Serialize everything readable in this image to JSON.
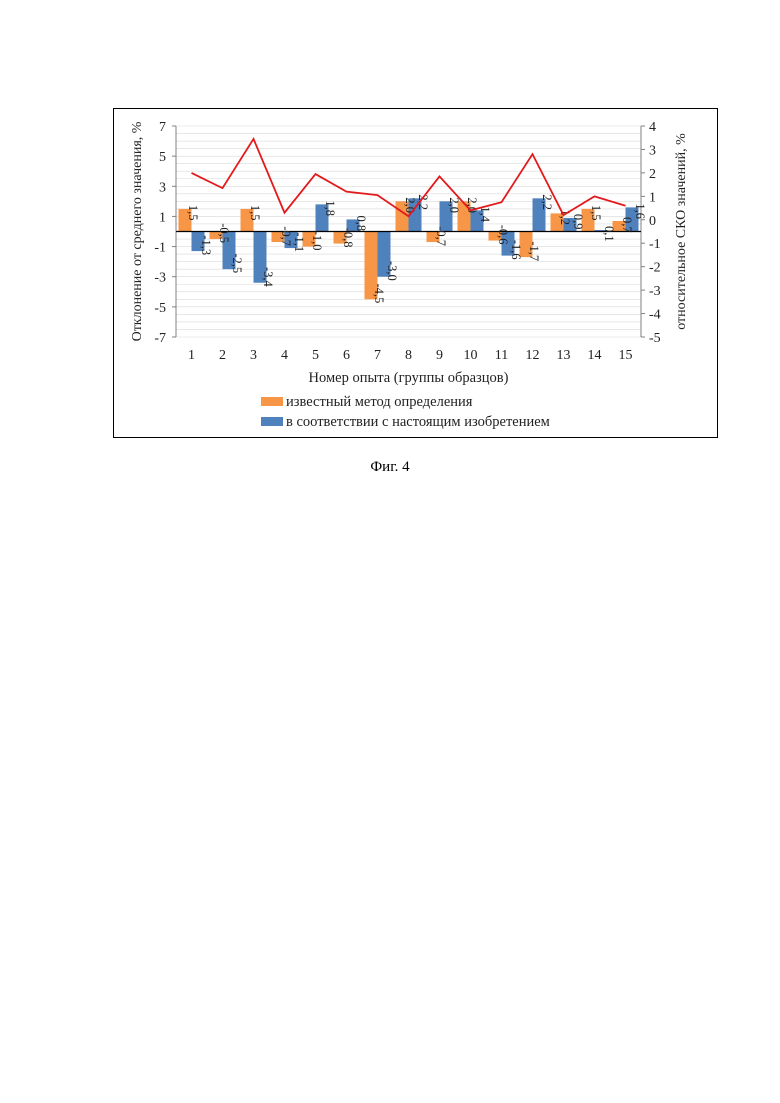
{
  "figure": {
    "caption": "Фиг. 4"
  },
  "chart_data": {
    "type": "bar",
    "categories": [
      "1",
      "2",
      "3",
      "4",
      "5",
      "6",
      "7",
      "8",
      "9",
      "10",
      "11",
      "12",
      "13",
      "14",
      "15"
    ],
    "series": [
      {
        "name": "известный метод определения",
        "color": "#f79646",
        "axis": "left",
        "values": [
          1.5,
          -0.5,
          1.5,
          -0.7,
          -1.0,
          -0.8,
          -4.5,
          2.0,
          -0.7,
          2.0,
          -0.6,
          -1.7,
          1.2,
          1.5,
          0.7
        ]
      },
      {
        "name": "в соответствии с настоящим изобретением",
        "color": "#4f81bd",
        "axis": "left",
        "values": [
          -1.3,
          -2.5,
          -3.4,
          -1.1,
          1.8,
          0.8,
          -3.0,
          2.2,
          2.0,
          1.4,
          -1.6,
          2.2,
          0.9,
          0.1,
          1.6
        ]
      },
      {
        "type": "line",
        "color": "#e31a1c",
        "axis": "right",
        "values": [
          2.0,
          1.35,
          3.45,
          0.3,
          1.95,
          1.2,
          1.05,
          0.15,
          1.85,
          0.4,
          0.75,
          2.8,
          0.2,
          1.0,
          0.6
        ]
      }
    ],
    "value_labels": {
      "0": [
        "1,5",
        "-0,5",
        "1,5",
        "-0,7",
        "-1,0",
        "-0,8",
        "-4,5",
        "2,0",
        "-0,7",
        "2,0",
        "-0,6",
        "-1,7",
        "1,2",
        "1,5",
        "0,7"
      ],
      "1": [
        "-1,3",
        "-2,5",
        "-3,4",
        "-1,1",
        "1,8",
        "0,8",
        "-3,0",
        "2,2",
        "2,0",
        "1,4",
        "-1,6",
        "2,2",
        "0,9",
        "0,1",
        "1,6"
      ]
    },
    "xlabel": "Номер опыта (группы образцов)",
    "ylabel": "Отклонение от среднего значения, %",
    "y2label": "относительное СКО значений, %",
    "ylim": [
      -7,
      7
    ],
    "yticks": [
      "7",
      "5",
      "3",
      "1",
      "-1",
      "-3",
      "-5",
      "-7"
    ],
    "y2lim": [
      -5,
      4
    ],
    "y2ticks": [
      "4",
      "3",
      "2",
      "1",
      "0",
      "-1",
      "-2",
      "-3",
      "-4",
      "-5"
    ],
    "grid": true,
    "legend_position": "bottom"
  }
}
